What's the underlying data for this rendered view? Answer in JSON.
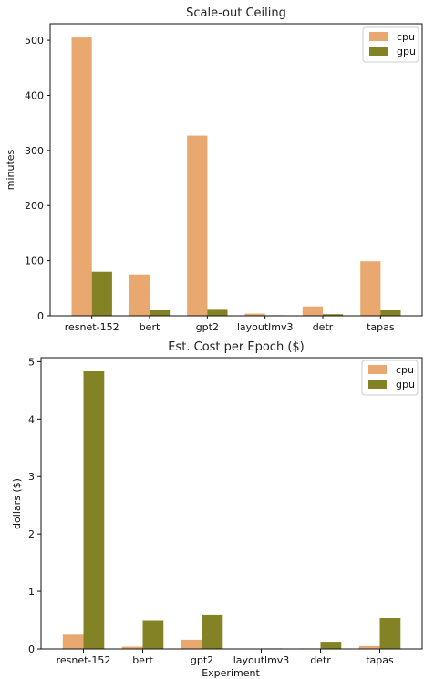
{
  "chart_data": [
    {
      "type": "bar",
      "title": "Scale-out Ceiling",
      "xlabel": "",
      "ylabel": "minutes",
      "categories": [
        "resnet-152",
        "bert",
        "gpt2",
        "layoutlmv3",
        "detr",
        "tapas"
      ],
      "series": [
        {
          "name": "cpu",
          "color": "#E8A870",
          "values": [
            505,
            75,
            327,
            4,
            17,
            99
          ]
        },
        {
          "name": "gpu",
          "color": "#838325",
          "values": [
            80,
            10,
            11,
            1,
            3,
            10
          ]
        }
      ],
      "ylim": [
        0,
        530
      ],
      "yticks": [
        0,
        100,
        200,
        300,
        400,
        500
      ],
      "legend": "top-right",
      "grid": false
    },
    {
      "type": "bar",
      "title": "Est. Cost per Epoch ($)",
      "xlabel": "Experiment",
      "ylabel": "dollars ($)",
      "categories": [
        "resnet-152",
        "bert",
        "gpt2",
        "layoutlmv3",
        "detr",
        "tapas"
      ],
      "series": [
        {
          "name": "cpu",
          "color": "#E8A870",
          "values": [
            0.25,
            0.04,
            0.16,
            0.0,
            0.01,
            0.05
          ]
        },
        {
          "name": "gpu",
          "color": "#838325",
          "values": [
            4.84,
            0.5,
            0.59,
            0.01,
            0.11,
            0.54
          ]
        }
      ],
      "ylim": [
        0,
        5.07
      ],
      "yticks": [
        0,
        1,
        2,
        3,
        4,
        5
      ],
      "legend": "top-right",
      "grid": false
    }
  ]
}
